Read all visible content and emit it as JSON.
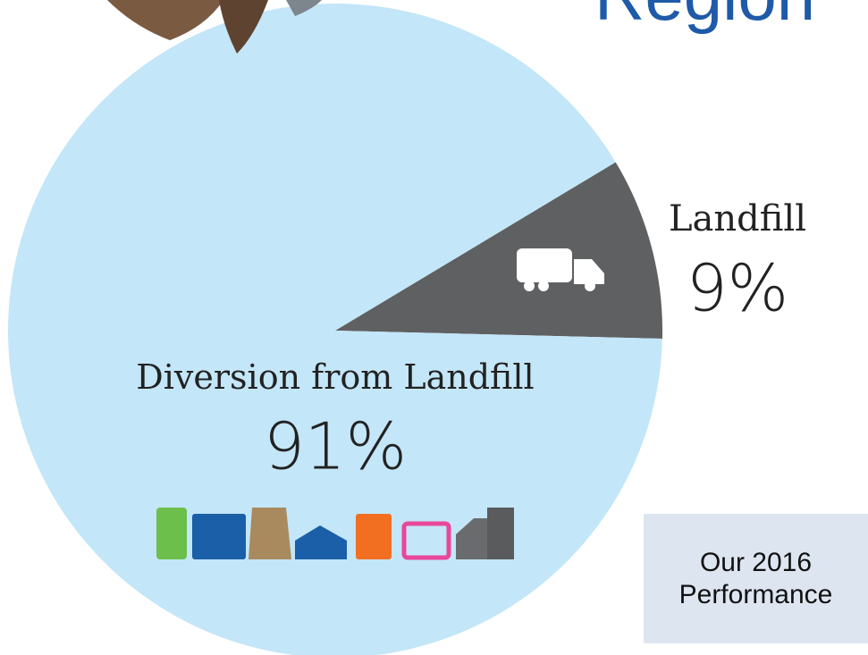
{
  "chart_data": {
    "type": "pie",
    "title": "Region",
    "categories": [
      "Landfill",
      "Diversion from Landfill"
    ],
    "values": [
      9,
      91
    ],
    "value_labels": [
      "9%",
      "91%"
    ],
    "colors": [
      "#5f6062",
      "#c3e6f8"
    ],
    "annotation": "Our 2016 Performance"
  }
}
